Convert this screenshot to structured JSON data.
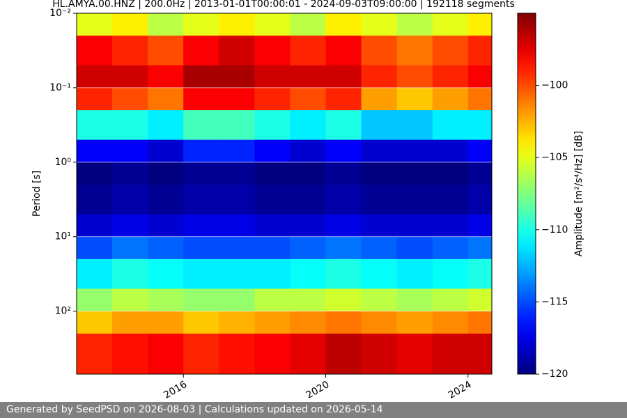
{
  "chart_data": {
    "type": "heatmap",
    "title": "HL.AMYA.00.HNZ | 200.0Hz | 2013-01-01T00:00:01 - 2024-09-03T09:00:00 | 192118 segments",
    "ylabel": "Period [s]",
    "colormap": "jet",
    "yscale": "log",
    "y_inverted": true,
    "grid": true,
    "xlim": [
      2013,
      2024.67
    ],
    "xticks": [
      2016,
      2020,
      2024
    ],
    "ylim": [
      0.01,
      700
    ],
    "yticks": [
      {
        "value": 0.01,
        "label": "10⁻²"
      },
      {
        "value": 0.1,
        "label": "10⁻¹"
      },
      {
        "value": 1,
        "label": "10⁰"
      },
      {
        "value": 10,
        "label": "10¹"
      },
      {
        "value": 100,
        "label": "10²"
      }
    ],
    "x_edges": [
      2013,
      2014,
      2015,
      2016,
      2017,
      2018,
      2019,
      2020,
      2021,
      2022,
      2023,
      2024,
      2024.67
    ],
    "y_edges": [
      0.01,
      0.02,
      0.05,
      0.1,
      0.2,
      0.5,
      1,
      2,
      5,
      10,
      20,
      50,
      100,
      200,
      700
    ],
    "values": [
      [
        -105,
        -104,
        -106,
        -105,
        -104,
        -105,
        -106,
        -104,
        -105,
        -106,
        -105,
        -104
      ],
      [
        -98,
        -99,
        -100,
        -98,
        -97,
        -98,
        -99,
        -98,
        -100,
        -101,
        -100,
        -99
      ],
      [
        -97,
        -97,
        -98,
        -96,
        -96,
        -97,
        -97,
        -97,
        -99,
        -100,
        -99,
        -98
      ],
      [
        -99,
        -100,
        -101,
        -98,
        -98,
        -99,
        -100,
        -99,
        -102,
        -103,
        -102,
        -101
      ],
      [
        -110,
        -110,
        -111,
        -109,
        -109,
        -110,
        -111,
        -110,
        -112,
        -112,
        -111,
        -111
      ],
      [
        -117,
        -117,
        -118,
        -116,
        -116,
        -117,
        -118,
        -117,
        -118,
        -118,
        -118,
        -117
      ],
      [
        -120,
        -119.5,
        -120,
        -119.5,
        -119.5,
        -120,
        -120,
        -119.5,
        -120,
        -120,
        -120,
        -119.5
      ],
      [
        -119.5,
        -119,
        -119.5,
        -119,
        -119,
        -119.5,
        -119.5,
        -119,
        -119.5,
        -119.5,
        -119.5,
        -119
      ],
      [
        -118,
        -117.5,
        -118,
        -117.5,
        -117.5,
        -118,
        -118,
        -117.5,
        -118,
        -118,
        -118,
        -117.5
      ],
      [
        -115,
        -114,
        -114.5,
        -115,
        -115,
        -115,
        -114.5,
        -114,
        -114.5,
        -115,
        -114.5,
        -114
      ],
      [
        -111,
        -110,
        -110.5,
        -111,
        -111,
        -111,
        -110.5,
        -110,
        -110.5,
        -111,
        -110.5,
        -110
      ],
      [
        -107,
        -106,
        -106.5,
        -107,
        -107,
        -106,
        -106,
        -105.5,
        -106,
        -106.5,
        -106,
        -105.5
      ],
      [
        -103,
        -102,
        -102,
        -103,
        -102.5,
        -102,
        -101.5,
        -101,
        -101.5,
        -102,
        -101.5,
        -101
      ],
      [
        -99,
        -98.5,
        -98,
        -99,
        -98.5,
        -98,
        -97.5,
        -96.5,
        -97,
        -97.5,
        -97,
        -97
      ]
    ],
    "colorbar": {
      "label": "Amplitude [m²/s⁴/Hz] [dB]",
      "zlim": [
        -120,
        -95
      ],
      "ticks": [
        {
          "value": -100,
          "label": "−100"
        },
        {
          "value": -105,
          "label": "−105"
        },
        {
          "value": -110,
          "label": "−110"
        },
        {
          "value": -115,
          "label": "−115"
        },
        {
          "value": -120,
          "label": "−120"
        }
      ]
    }
  },
  "footer": "Generated by SeedPSD on 2026-08-03 | Calculations updated on 2026-05-14"
}
